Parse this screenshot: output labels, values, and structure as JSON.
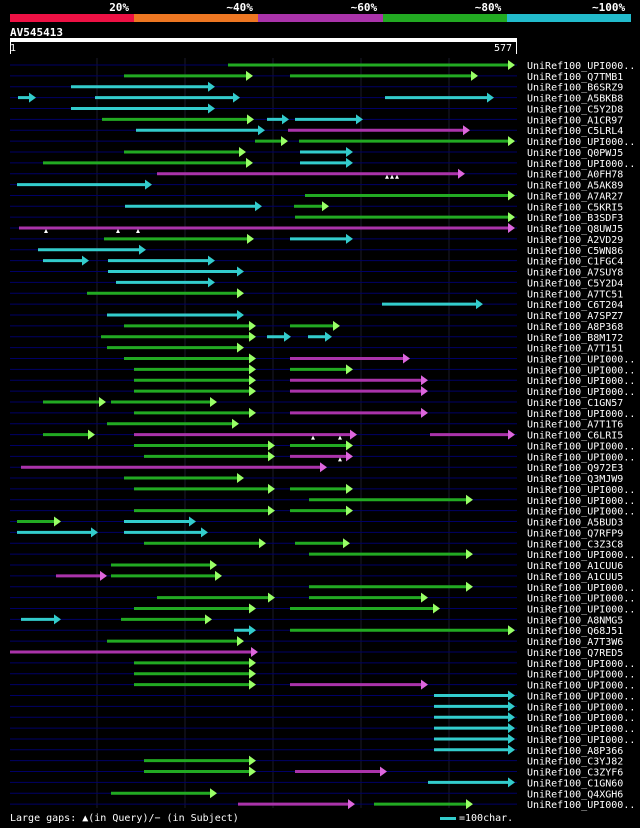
{
  "scale": {
    "segments": [
      {
        "label": "20%",
        "color": "#ee1144"
      },
      {
        "label": "~40%",
        "color": "#ee7722"
      },
      {
        "label": "~60%",
        "color": "#aa33aa"
      },
      {
        "label": "~80%",
        "color": "#22aa22"
      },
      {
        "label": "~100%",
        "color": "#22bbcc"
      }
    ]
  },
  "query": {
    "title": "AV545413",
    "start": "1",
    "end": "577",
    "length": 577
  },
  "legend": {
    "gaps_text": "Large gaps: ▲(in Query)/− (in Subject)",
    "scale_text": "=100char."
  },
  "colors": {
    "cyan": "#33cccc",
    "green": "#22aa22",
    "magenta": "#aa33aa",
    "arrow_green": "#99ff66",
    "arrow_cyan": "#33cccc",
    "arrow_magenta": "#dd66dd",
    "row_line": "#000066"
  },
  "hits": [
    {
      "label": "UniRef100_UPI000..",
      "segs": [
        [
          228,
          515,
          "green"
        ]
      ]
    },
    {
      "label": "UniRef100_Q7TMB1",
      "segs": [
        [
          124,
          253,
          "green"
        ],
        [
          290,
          478,
          "green"
        ]
      ]
    },
    {
      "label": "UniRef100_B6SRZ9",
      "segs": [
        [
          71,
          215,
          "cyan"
        ]
      ]
    },
    {
      "label": "UniRef100_A5BKB8",
      "segs": [
        [
          18,
          36,
          "cyan"
        ],
        [
          95,
          240,
          "cyan"
        ],
        [
          385,
          494,
          "cyan"
        ]
      ]
    },
    {
      "label": "UniRef100_C5Y2D8",
      "segs": [
        [
          71,
          215,
          "cyan"
        ]
      ]
    },
    {
      "label": "UniRef100_A1CR97",
      "segs": [
        [
          102,
          254,
          "green"
        ],
        [
          267,
          289,
          "cyan"
        ],
        [
          295,
          363,
          "cyan"
        ]
      ]
    },
    {
      "label": "UniRef100_C5LRL4",
      "segs": [
        [
          136,
          265,
          "cyan"
        ],
        [
          288,
          470,
          "magenta"
        ]
      ]
    },
    {
      "label": "UniRef100_UPI000..",
      "segs": [
        [
          255,
          288,
          "green"
        ],
        [
          299,
          515,
          "green"
        ]
      ]
    },
    {
      "label": "UniRef100_Q0PWJ5",
      "segs": [
        [
          124,
          246,
          "green"
        ],
        [
          300,
          353,
          "cyan"
        ]
      ]
    },
    {
      "label": "UniRef100_UPI000..",
      "segs": [
        [
          43,
          253,
          "green"
        ],
        [
          300,
          353,
          "cyan"
        ]
      ]
    },
    {
      "label": "UniRef100_A0FH78",
      "segs": [
        [
          157,
          465,
          "magenta"
        ]
      ],
      "marks": [
        387,
        392,
        397
      ]
    },
    {
      "label": "UniRef100_A5AK89",
      "segs": [
        [
          17,
          152,
          "cyan"
        ]
      ]
    },
    {
      "label": "UniRef100_A7AR27",
      "segs": [
        [
          305,
          515,
          "green"
        ]
      ]
    },
    {
      "label": "UniRef100_C5KRI5",
      "segs": [
        [
          125,
          262,
          "cyan"
        ],
        [
          294,
          329,
          "green"
        ]
      ]
    },
    {
      "label": "UniRef100_B3SDF3",
      "segs": [
        [
          295,
          515,
          "green"
        ]
      ]
    },
    {
      "label": "UniRef100_Q8UWJ5",
      "segs": [
        [
          19,
          515,
          "magenta"
        ]
      ],
      "marks": [
        46,
        118,
        138
      ]
    },
    {
      "label": "UniRef100_A2VD29",
      "segs": [
        [
          104,
          254,
          "green"
        ],
        [
          290,
          353,
          "cyan"
        ]
      ]
    },
    {
      "label": "UniRef100_C5WN86",
      "segs": [
        [
          38,
          146,
          "cyan"
        ]
      ]
    },
    {
      "label": "UniRef100_C1FGC4",
      "segs": [
        [
          43,
          89,
          "cyan"
        ],
        [
          108,
          215,
          "cyan"
        ]
      ]
    },
    {
      "label": "UniRef100_A7SUY8",
      "segs": [
        [
          108,
          244,
          "cyan"
        ]
      ]
    },
    {
      "label": "UniRef100_C5Y2D4",
      "segs": [
        [
          116,
          215,
          "cyan"
        ]
      ]
    },
    {
      "label": "UniRef100_A7TC51",
      "segs": [
        [
          87,
          244,
          "green"
        ]
      ]
    },
    {
      "label": "UniRef100_C6T204",
      "segs": [
        [
          382,
          483,
          "cyan"
        ]
      ]
    },
    {
      "label": "UniRef100_A7SPZ7",
      "segs": [
        [
          107,
          244,
          "cyan"
        ]
      ]
    },
    {
      "label": "UniRef100_A8P368",
      "segs": [
        [
          124,
          256,
          "green"
        ],
        [
          290,
          340,
          "green"
        ]
      ]
    },
    {
      "label": "UniRef100_B8M172",
      "segs": [
        [
          101,
          256,
          "green"
        ],
        [
          267,
          291,
          "cyan"
        ],
        [
          308,
          332,
          "cyan"
        ]
      ]
    },
    {
      "label": "UniRef100_A7T151",
      "segs": [
        [
          107,
          244,
          "green"
        ]
      ]
    },
    {
      "label": "UniRef100_UPI000..",
      "segs": [
        [
          124,
          256,
          "green"
        ],
        [
          290,
          410,
          "magenta"
        ]
      ]
    },
    {
      "label": "UniRef100_UPI000..",
      "segs": [
        [
          134,
          256,
          "green"
        ],
        [
          290,
          353,
          "green"
        ]
      ]
    },
    {
      "label": "UniRef100_UPI000..",
      "segs": [
        [
          134,
          256,
          "green"
        ],
        [
          290,
          428,
          "magenta"
        ]
      ]
    },
    {
      "label": "UniRef100_UPI000..",
      "segs": [
        [
          134,
          256,
          "green"
        ],
        [
          290,
          428,
          "magenta"
        ]
      ]
    },
    {
      "label": "UniRef100_C1GN57",
      "segs": [
        [
          43,
          106,
          "green"
        ],
        [
          111,
          217,
          "green"
        ]
      ]
    },
    {
      "label": "UniRef100_UPI000..",
      "segs": [
        [
          134,
          256,
          "green"
        ],
        [
          290,
          428,
          "magenta"
        ]
      ]
    },
    {
      "label": "UniRef100_A7T1T6",
      "segs": [
        [
          107,
          239,
          "green"
        ]
      ]
    },
    {
      "label": "UniRef100_C6LRI5",
      "segs": [
        [
          43,
          95,
          "green"
        ],
        [
          134,
          357,
          "magenta"
        ],
        [
          430,
          515,
          "magenta"
        ]
      ],
      "marks": [
        313,
        340
      ]
    },
    {
      "label": "UniRef100_UPI000..",
      "segs": [
        [
          134,
          275,
          "green"
        ],
        [
          290,
          353,
          "green"
        ]
      ]
    },
    {
      "label": "UniRef100_UPI000..",
      "segs": [
        [
          144,
          275,
          "green"
        ],
        [
          290,
          353,
          "magenta"
        ]
      ],
      "marks": [
        340
      ]
    },
    {
      "label": "UniRef100_Q972E3",
      "segs": [
        [
          21,
          327,
          "magenta"
        ]
      ]
    },
    {
      "label": "UniRef100_Q3MJW9",
      "segs": [
        [
          124,
          244,
          "green"
        ]
      ]
    },
    {
      "label": "UniRef100_UPI000..",
      "segs": [
        [
          134,
          275,
          "green"
        ],
        [
          290,
          353,
          "green"
        ]
      ]
    },
    {
      "label": "UniRef100_UPI000..",
      "segs": [
        [
          309,
          473,
          "green"
        ]
      ]
    },
    {
      "label": "UniRef100_UPI000..",
      "segs": [
        [
          134,
          275,
          "green"
        ],
        [
          290,
          353,
          "green"
        ]
      ]
    },
    {
      "label": "UniRef100_A5BUD3",
      "segs": [
        [
          17,
          61,
          "green"
        ],
        [
          124,
          196,
          "cyan"
        ]
      ]
    },
    {
      "label": "UniRef100_Q7RFP9",
      "segs": [
        [
          17,
          98,
          "cyan"
        ],
        [
          124,
          208,
          "cyan"
        ]
      ]
    },
    {
      "label": "UniRef100_C3Z3C8",
      "segs": [
        [
          144,
          266,
          "green"
        ],
        [
          295,
          350,
          "green"
        ]
      ]
    },
    {
      "label": "UniRef100_UPI000..",
      "segs": [
        [
          309,
          473,
          "green"
        ]
      ]
    },
    {
      "label": "UniRef100_A1CUU6",
      "segs": [
        [
          111,
          217,
          "green"
        ]
      ]
    },
    {
      "label": "UniRef100_A1CUU5",
      "segs": [
        [
          56,
          107,
          "magenta"
        ],
        [
          111,
          222,
          "green"
        ]
      ]
    },
    {
      "label": "UniRef100_UPI000..",
      "segs": [
        [
          309,
          473,
          "green"
        ]
      ]
    },
    {
      "label": "UniRef100_UPI000..",
      "segs": [
        [
          157,
          275,
          "green"
        ],
        [
          309,
          428,
          "green"
        ]
      ]
    },
    {
      "label": "UniRef100_UPI000..",
      "segs": [
        [
          134,
          256,
          "green"
        ],
        [
          290,
          440,
          "green"
        ]
      ]
    },
    {
      "label": "UniRef100_A8NMG5",
      "segs": [
        [
          21,
          61,
          "cyan"
        ],
        [
          121,
          212,
          "green"
        ]
      ]
    },
    {
      "label": "UniRef100_Q68J51",
      "segs": [
        [
          234,
          256,
          "cyan"
        ],
        [
          290,
          515,
          "green"
        ]
      ]
    },
    {
      "label": "UniRef100_A7T3W6",
      "segs": [
        [
          107,
          244,
          "green"
        ]
      ]
    },
    {
      "label": "UniRef100_Q7RED5",
      "segs": [
        [
          10,
          258,
          "magenta"
        ]
      ]
    },
    {
      "label": "UniRef100_UPI000..",
      "segs": [
        [
          134,
          256,
          "green"
        ]
      ]
    },
    {
      "label": "UniRef100_UPI000..",
      "segs": [
        [
          134,
          256,
          "green"
        ]
      ]
    },
    {
      "label": "UniRef100_UPI000..",
      "segs": [
        [
          134,
          256,
          "green"
        ],
        [
          290,
          428,
          "magenta"
        ]
      ]
    },
    {
      "label": "UniRef100_UPI000..",
      "segs": [
        [
          434,
          515,
          "cyan"
        ]
      ]
    },
    {
      "label": "UniRef100_UPI000..",
      "segs": [
        [
          434,
          515,
          "cyan"
        ]
      ]
    },
    {
      "label": "UniRef100_UPI000..",
      "segs": [
        [
          434,
          515,
          "cyan"
        ]
      ]
    },
    {
      "label": "UniRef100_UPI000..",
      "segs": [
        [
          434,
          515,
          "cyan"
        ]
      ]
    },
    {
      "label": "UniRef100_UPI000..",
      "segs": [
        [
          434,
          515,
          "cyan"
        ]
      ]
    },
    {
      "label": "UniRef100_A8P366",
      "segs": [
        [
          434,
          515,
          "cyan"
        ]
      ]
    },
    {
      "label": "UniRef100_C3YJ82",
      "segs": [
        [
          144,
          256,
          "green"
        ]
      ]
    },
    {
      "label": "UniRef100_C3ZYF6",
      "segs": [
        [
          144,
          256,
          "green"
        ],
        [
          295,
          387,
          "magenta"
        ]
      ]
    },
    {
      "label": "UniRef100_C1GN60",
      "segs": [
        [
          428,
          515,
          "cyan"
        ]
      ]
    },
    {
      "label": "UniRef100_Q4XGH6",
      "segs": [
        [
          111,
          217,
          "green"
        ]
      ]
    },
    {
      "label": "UniRef100_UPI000..",
      "segs": [
        [
          238,
          355,
          "magenta"
        ],
        [
          374,
          473,
          "green"
        ]
      ]
    }
  ]
}
